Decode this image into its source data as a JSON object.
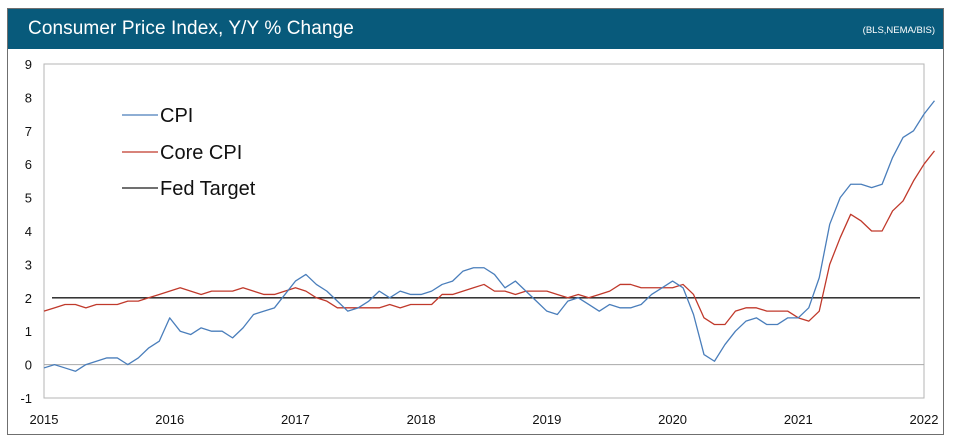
{
  "header": {
    "title": "Consumer Price Index, Y/Y % Change",
    "source": "(BLS,NEMA/BIS)"
  },
  "colors": {
    "header_bg": "#085a7b",
    "cpi": "#4a7ebb",
    "core_cpi": "#c0392b",
    "fed_target": "#1a1a1a"
  },
  "chart_data": {
    "type": "line",
    "title": "Consumer Price Index, Y/Y % Change",
    "xlabel": "",
    "ylabel": "",
    "ylim": [
      -1,
      9
    ],
    "yticks": [
      "-1",
      "0",
      "1",
      "2",
      "3",
      "4",
      "5",
      "6",
      "7",
      "8",
      "9"
    ],
    "xticks": [
      "2015",
      "2016",
      "2017",
      "2018",
      "2019",
      "2020",
      "2021",
      "2022"
    ],
    "grid": false,
    "legend_position": "top-left",
    "x_start": "2015-01",
    "x_end": "2022-01",
    "series": [
      {
        "name": "CPI",
        "values": [
          -0.1,
          0.0,
          -0.1,
          -0.2,
          0.0,
          0.1,
          0.2,
          0.2,
          0.0,
          0.2,
          0.5,
          0.7,
          1.4,
          1.0,
          0.9,
          1.1,
          1.0,
          1.0,
          0.8,
          1.1,
          1.5,
          1.6,
          1.7,
          2.1,
          2.5,
          2.7,
          2.4,
          2.2,
          1.9,
          1.6,
          1.7,
          1.9,
          2.2,
          2.0,
          2.2,
          2.1,
          2.1,
          2.2,
          2.4,
          2.5,
          2.8,
          2.9,
          2.9,
          2.7,
          2.3,
          2.5,
          2.2,
          1.9,
          1.6,
          1.5,
          1.9,
          2.0,
          1.8,
          1.6,
          1.8,
          1.7,
          1.7,
          1.8,
          2.1,
          2.3,
          2.5,
          2.3,
          1.5,
          0.3,
          0.1,
          0.6,
          1.0,
          1.3,
          1.4,
          1.2,
          1.2,
          1.4,
          1.4,
          1.7,
          2.6,
          4.2,
          5.0,
          5.4,
          5.4,
          5.3,
          5.4,
          6.2,
          6.8,
          7.0,
          7.5,
          7.9
        ]
      },
      {
        "name": "Core CPI",
        "values": [
          1.6,
          1.7,
          1.8,
          1.8,
          1.7,
          1.8,
          1.8,
          1.8,
          1.9,
          1.9,
          2.0,
          2.1,
          2.2,
          2.3,
          2.2,
          2.1,
          2.2,
          2.2,
          2.2,
          2.3,
          2.2,
          2.1,
          2.1,
          2.2,
          2.3,
          2.2,
          2.0,
          1.9,
          1.7,
          1.7,
          1.7,
          1.7,
          1.7,
          1.8,
          1.7,
          1.8,
          1.8,
          1.8,
          2.1,
          2.1,
          2.2,
          2.3,
          2.4,
          2.2,
          2.2,
          2.1,
          2.2,
          2.2,
          2.2,
          2.1,
          2.0,
          2.1,
          2.0,
          2.1,
          2.2,
          2.4,
          2.4,
          2.3,
          2.3,
          2.3,
          2.3,
          2.4,
          2.1,
          1.4,
          1.2,
          1.2,
          1.6,
          1.7,
          1.7,
          1.6,
          1.6,
          1.6,
          1.4,
          1.3,
          1.6,
          3.0,
          3.8,
          4.5,
          4.3,
          4.0,
          4.0,
          4.6,
          4.9,
          5.5,
          6.0,
          6.4
        ]
      },
      {
        "name": "Fed Target",
        "values": [
          2,
          2
        ]
      }
    ]
  }
}
